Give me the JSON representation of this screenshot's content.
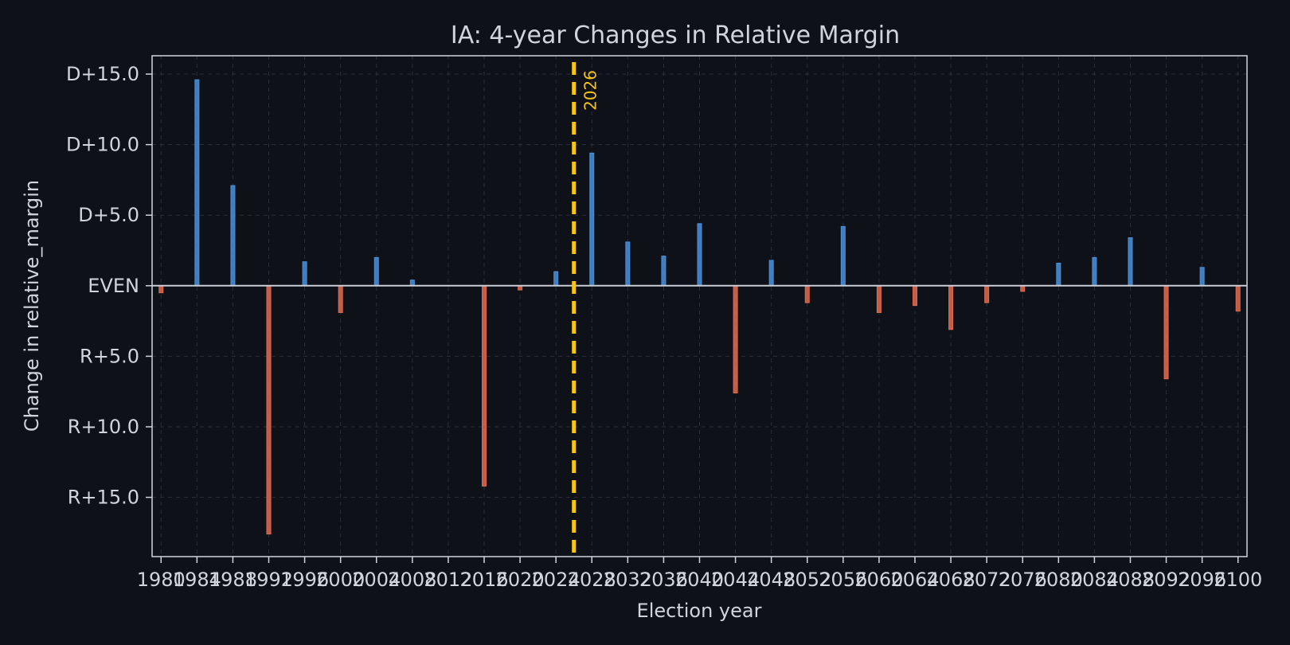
{
  "chart_data": {
    "type": "bar",
    "title": "IA: 4-year Changes in Relative Margin",
    "xlabel": "Election year",
    "ylabel": "Change in relative_margin",
    "x": [
      1980,
      1984,
      1988,
      1992,
      1996,
      2000,
      2004,
      2008,
      2012,
      2016,
      2020,
      2024,
      2028,
      2032,
      2036,
      2040,
      2044,
      2048,
      2052,
      2056,
      2060,
      2064,
      2068,
      2072,
      2076,
      2080,
      2084,
      2088,
      2092,
      2096,
      2100
    ],
    "values": [
      -0.5,
      14.6,
      7.1,
      -17.6,
      1.7,
      -1.9,
      2.0,
      0.4,
      0.0,
      -14.2,
      -0.3,
      1.0,
      9.4,
      3.1,
      2.1,
      4.4,
      -7.6,
      1.8,
      -1.2,
      4.2,
      -1.9,
      -1.4,
      -3.1,
      -1.2,
      -0.4,
      1.6,
      2.0,
      3.4,
      -6.6,
      1.3,
      -1.8
    ],
    "xlim": [
      1979,
      2101
    ],
    "ylim": [
      -19.2,
      16.3
    ],
    "yticks": [
      15,
      10,
      5,
      0,
      -5,
      -10,
      -15
    ],
    "ytick_labels": [
      "D+15.0",
      "D+10.0",
      "D+5.0",
      "EVEN",
      "R+5.0",
      "R+10.0",
      "R+15.0"
    ],
    "xtick_labels": [
      "1980",
      "1984",
      "1988",
      "1992",
      "1996",
      "2000",
      "2004",
      "2008",
      "2012",
      "2016",
      "2020",
      "2024",
      "2028",
      "2032",
      "2036",
      "2040",
      "2044",
      "2048",
      "2052",
      "2056",
      "2060",
      "2064",
      "2068",
      "2072",
      "2076",
      "2080",
      "2084",
      "2088",
      "2092",
      "2096",
      "2100"
    ],
    "grid": true,
    "annotation": {
      "x": 2026,
      "label": "2026",
      "color": "#f5c518"
    },
    "colors": {
      "positive": "#4a90d9",
      "negative": "#e06b50",
      "background": "#0e1117"
    }
  }
}
